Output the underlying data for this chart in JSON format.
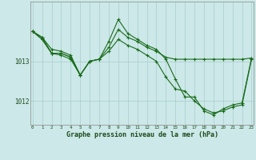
{
  "bg_color": "#cce8e8",
  "grid_color": "#aacccc",
  "line_color": "#1a6b1a",
  "xlabel": "Graphe pression niveau de la mer (hPa)",
  "x_ticks": [
    0,
    1,
    2,
    3,
    4,
    5,
    6,
    7,
    8,
    9,
    10,
    11,
    12,
    13,
    14,
    15,
    16,
    17,
    18,
    19,
    20,
    21,
    22,
    23
  ],
  "yticks": [
    1012,
    1013
  ],
  "xmin": -0.2,
  "xmax": 23.2,
  "ymin": 1011.4,
  "ymax": 1014.5,
  "line1_x": [
    0,
    1,
    2,
    3,
    4,
    5,
    6,
    7,
    8,
    9,
    10,
    11,
    12,
    13,
    14,
    15,
    16,
    17,
    18,
    19,
    20,
    21,
    22,
    23
  ],
  "line1_y": [
    1013.75,
    1013.6,
    1013.3,
    1013.25,
    1013.15,
    1012.65,
    1013.0,
    1013.05,
    1013.35,
    1013.8,
    1013.6,
    1013.5,
    1013.35,
    1013.25,
    1013.1,
    1013.05,
    1013.05,
    1013.05,
    1013.05,
    1013.05,
    1013.05,
    1013.05,
    1013.05,
    1013.08
  ],
  "line2_x": [
    0,
    1,
    2,
    3,
    4,
    5,
    6,
    7,
    8,
    9,
    10,
    11,
    12,
    13,
    14,
    15,
    16,
    17,
    18,
    19,
    20,
    21,
    22,
    23
  ],
  "line2_y": [
    1013.75,
    1013.55,
    1013.2,
    1013.2,
    1013.1,
    1012.65,
    1013.0,
    1013.05,
    1013.25,
    1013.55,
    1013.4,
    1013.3,
    1013.15,
    1013.0,
    1012.6,
    1012.3,
    1012.25,
    1012.0,
    1011.8,
    1011.7,
    1011.75,
    1011.85,
    1011.9,
    1013.05
  ],
  "line3_x": [
    0,
    1,
    2,
    3,
    4,
    5
  ],
  "line3_y": [
    1013.75,
    1013.55,
    1013.2,
    1013.2,
    1013.1,
    1012.65
  ],
  "line4_x": [
    0,
    1,
    2,
    3,
    4,
    5,
    6,
    7,
    8,
    9,
    10,
    11,
    12,
    13,
    14,
    15,
    16,
    17,
    18,
    19,
    20,
    21,
    22,
    23
  ],
  "line4_y": [
    1013.75,
    1013.6,
    1013.2,
    1013.15,
    1013.05,
    1012.65,
    1013.0,
    1013.05,
    1013.5,
    1014.05,
    1013.7,
    1013.55,
    1013.4,
    1013.3,
    1013.05,
    1012.55,
    1012.1,
    1012.1,
    1011.75,
    1011.65,
    1011.8,
    1011.9,
    1011.95,
    1013.08
  ]
}
